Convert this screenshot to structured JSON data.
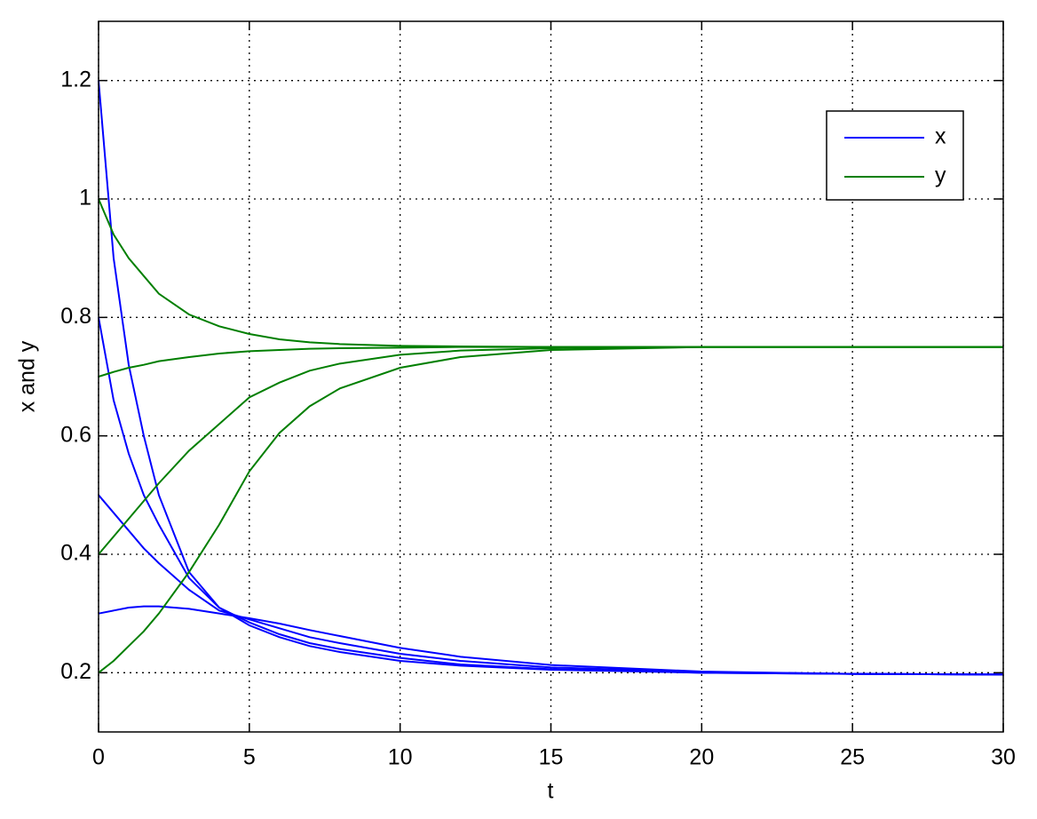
{
  "chart_data": {
    "type": "line",
    "xlabel": "t",
    "ylabel": "x and y",
    "x": [
      0,
      0.5,
      1,
      1.5,
      2,
      3,
      4,
      5,
      6,
      7,
      8,
      10,
      12,
      15,
      20,
      25,
      30
    ],
    "series": [
      {
        "name": "x",
        "color": "#0000ff",
        "values": [
          1.2,
          0.9,
          0.72,
          0.6,
          0.5,
          0.37,
          0.31,
          0.28,
          0.26,
          0.245,
          0.235,
          0.22,
          0.212,
          0.205,
          0.2,
          0.198,
          0.197
        ]
      },
      {
        "name": "y",
        "color": "#007f00",
        "values": [
          1.0,
          0.94,
          0.9,
          0.87,
          0.84,
          0.805,
          0.785,
          0.772,
          0.763,
          0.758,
          0.755,
          0.752,
          0.751,
          0.75,
          0.75,
          0.75,
          0.75
        ]
      },
      {
        "color": "#0000ff",
        "values": [
          0.8,
          0.66,
          0.57,
          0.5,
          0.45,
          0.36,
          0.31,
          0.285,
          0.265,
          0.25,
          0.24,
          0.225,
          0.214,
          0.206,
          0.2,
          0.198,
          0.197
        ]
      },
      {
        "color": "#0000ff",
        "values": [
          0.5,
          0.47,
          0.44,
          0.41,
          0.385,
          0.34,
          0.305,
          0.29,
          0.275,
          0.26,
          0.25,
          0.232,
          0.22,
          0.209,
          0.201,
          0.198,
          0.197
        ]
      },
      {
        "color": "#0000ff",
        "values": [
          0.3,
          0.305,
          0.31,
          0.312,
          0.312,
          0.308,
          0.3,
          0.292,
          0.283,
          0.272,
          0.262,
          0.242,
          0.227,
          0.213,
          0.202,
          0.198,
          0.197
        ]
      },
      {
        "color": "#007f00",
        "values": [
          0.7,
          0.708,
          0.715,
          0.72,
          0.726,
          0.733,
          0.739,
          0.743,
          0.745,
          0.747,
          0.748,
          0.749,
          0.75,
          0.75,
          0.75,
          0.75,
          0.75
        ]
      },
      {
        "color": "#007f00",
        "values": [
          0.4,
          0.43,
          0.46,
          0.49,
          0.52,
          0.575,
          0.62,
          0.665,
          0.69,
          0.71,
          0.722,
          0.737,
          0.744,
          0.748,
          0.75,
          0.75,
          0.75
        ]
      },
      {
        "color": "#007f00",
        "values": [
          0.2,
          0.22,
          0.245,
          0.27,
          0.3,
          0.37,
          0.45,
          0.54,
          0.605,
          0.65,
          0.68,
          0.715,
          0.733,
          0.745,
          0.75,
          0.75,
          0.75
        ]
      }
    ],
    "xlim": [
      0,
      30
    ],
    "xticks": [
      0,
      5,
      10,
      15,
      20,
      25,
      30
    ],
    "ylim": [
      0.1,
      1.3
    ],
    "yticks": [
      0.2,
      0.4,
      0.6,
      0.8,
      1,
      1.2
    ],
    "grid": true,
    "legend": "upper right"
  }
}
